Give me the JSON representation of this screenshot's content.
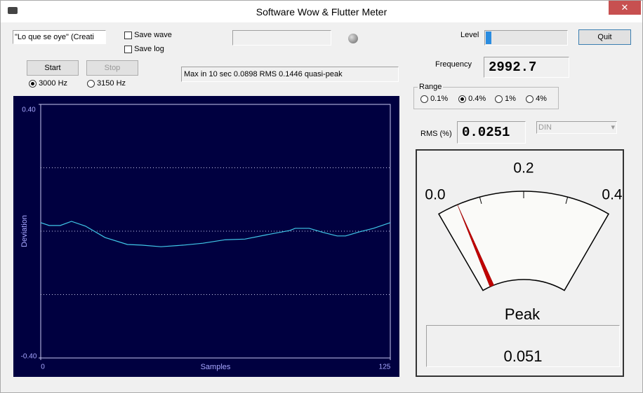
{
  "window": {
    "title": "Software Wow & Flutter Meter"
  },
  "controls": {
    "device": "\"Lo que se oye\" (Creati",
    "save_wave": "Save wave",
    "save_log": "Save log",
    "start": "Start",
    "stop": "Stop",
    "frequencies": [
      "3000 Hz",
      "3150 Hz"
    ],
    "frequency_selected": 0,
    "status": "Max in 10 sec 0.0898 RMS 0.1446 quasi-peak",
    "level_label": "Level",
    "level": 0.07,
    "quit": "Quit",
    "frequency_label": "Frequency",
    "frequency_value": "2992.7",
    "range_label": "Range",
    "ranges": [
      "0.1%",
      "0.4%",
      "1%",
      "4%"
    ],
    "range_selected": 1,
    "rms_label": "RMS (%)",
    "rms_value": "0.0251",
    "weighting": "DIN"
  },
  "meter": {
    "ticks": [
      {
        "value": 0.0,
        "label": "0.0"
      },
      {
        "value": 0.2,
        "label": "0.2"
      },
      {
        "value": 0.4,
        "label": "0.4"
      }
    ],
    "minor_ticks": [
      0.1,
      0.3
    ],
    "needle": 0.047,
    "peak_label": "Peak",
    "peak_value": "0.051"
  },
  "chart_data": {
    "type": "line",
    "x_label": "Samples",
    "y_label": "Deviation",
    "color": "#40c8e8",
    "x": [
      0,
      3,
      7,
      11,
      16,
      23,
      31,
      36,
      43,
      51,
      58,
      66,
      73,
      81,
      89,
      91,
      96,
      101,
      106,
      109,
      114,
      119,
      125
    ],
    "values": [
      0.027,
      0.018,
      0.018,
      0.031,
      0.016,
      -0.02,
      -0.042,
      -0.044,
      -0.049,
      -0.044,
      -0.038,
      -0.027,
      -0.025,
      -0.011,
      0.002,
      0.009,
      0.009,
      -0.004,
      -0.015,
      -0.015,
      -0.002,
      0.009,
      0.027
    ],
    "xlim": [
      0,
      125
    ],
    "ylim": [
      -0.4,
      0.4
    ],
    "xticks": [
      0,
      125
    ],
    "yticks": [
      {
        "value": 0.4,
        "label": "0.40"
      },
      {
        "value": -0.4,
        "label": "-0.40"
      }
    ],
    "grid_lines": [
      0.2,
      0,
      -0.2
    ]
  }
}
